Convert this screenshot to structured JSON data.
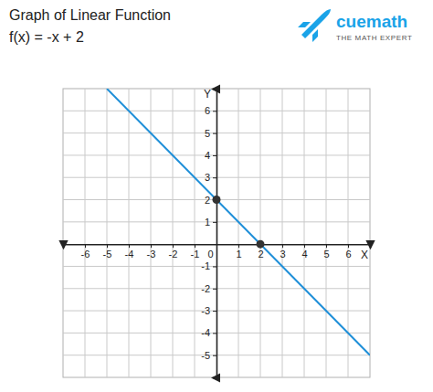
{
  "chart_data": {
    "type": "line",
    "title": "Graph of Linear Function",
    "subtitle": "f(x) = -x + 2",
    "x_label": "X",
    "y_label": "Y",
    "annotations": [
      "cuemath",
      "THE MATH EXPERT"
    ],
    "xlim": [
      -7,
      7
    ],
    "ylim": [
      -6,
      7
    ],
    "xticks": [
      -6,
      -5,
      -4,
      -3,
      -2,
      -1,
      0,
      1,
      2,
      3,
      4,
      5,
      6
    ],
    "yticks": [
      -5,
      -4,
      -3,
      -2,
      -1,
      1,
      2,
      3,
      4,
      5,
      6
    ],
    "grid": true,
    "series": [
      {
        "type": "line",
        "color": "#1f8fd8",
        "x": [
          -5,
          7
        ],
        "values": [
          7,
          -5
        ]
      },
      {
        "type": "scatter",
        "marker": "circle",
        "color": "#333333",
        "x": [
          0,
          2
        ],
        "values": [
          2,
          0
        ]
      }
    ]
  }
}
